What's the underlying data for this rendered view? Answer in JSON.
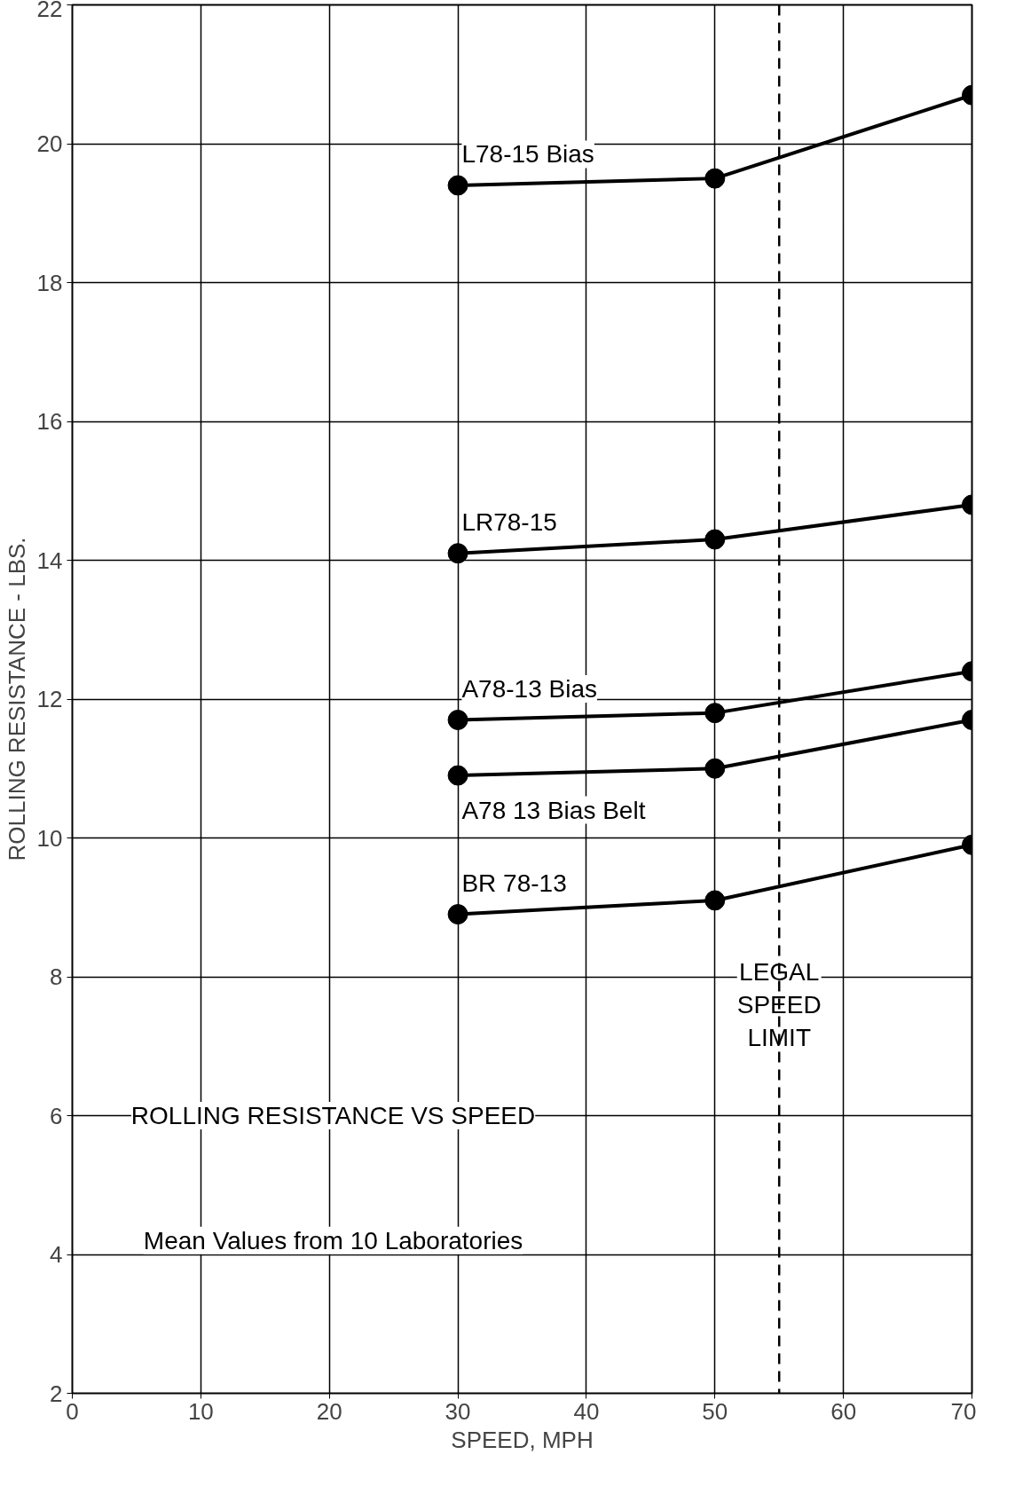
{
  "chart_data": {
    "type": "line",
    "xlabel": "SPEED, MPH",
    "ylabel": "ROLLING RESISTANCE - LBS.",
    "xlim": [
      0,
      70
    ],
    "xticks": [
      0,
      10,
      20,
      30,
      40,
      50,
      60,
      70
    ],
    "ylim": [
      2,
      22
    ],
    "yticks": [
      2,
      4,
      6,
      8,
      10,
      12,
      14,
      16,
      18,
      20,
      22
    ],
    "x": [
      30,
      50,
      70
    ],
    "grid": true,
    "marker": "circle",
    "line_style": "solid",
    "series": [
      {
        "name": "L78-15 Bias",
        "color": "#000000",
        "values": [
          19.4,
          19.5,
          20.7
        ]
      },
      {
        "name": "LR78-15",
        "color": "#000000",
        "values": [
          14.1,
          14.3,
          14.8
        ]
      },
      {
        "name": "A78-13 Bias",
        "color": "#000000",
        "values": [
          11.7,
          11.8,
          12.4
        ]
      },
      {
        "name": "A78 13 Bias Belt",
        "color": "#000000",
        "values": [
          10.9,
          11.0,
          11.7
        ]
      },
      {
        "name": "BR 78-13",
        "color": "#000000",
        "values": [
          8.9,
          9.1,
          9.9
        ]
      }
    ],
    "ref_lines": [
      {
        "axis": "x",
        "value": 55,
        "label": "LEGAL SPEED LIMIT",
        "line_style": "dashed",
        "color": "#000000"
      }
    ],
    "annotations": [
      "ROLLING RESISTANCE VS SPEED",
      "Mean Values from 10 Laboratories"
    ]
  }
}
